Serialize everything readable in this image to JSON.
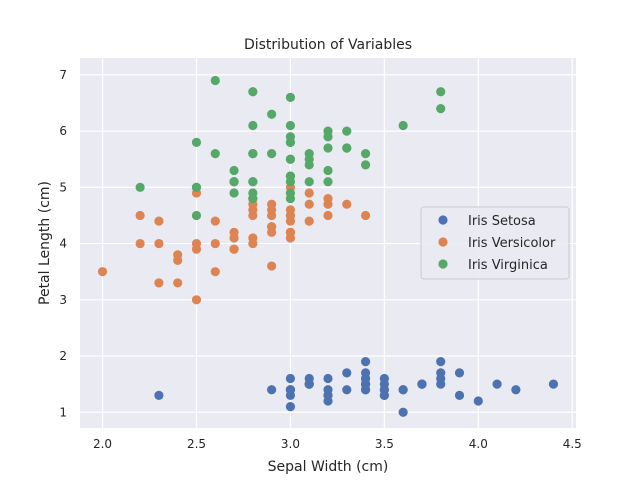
{
  "chart_data": {
    "type": "scatter",
    "title": "Distribution of Variables",
    "xlabel": "Sepal Width (cm)",
    "ylabel": "Petal Length (cm)",
    "xlim": [
      1.88,
      4.52
    ],
    "ylim": [
      0.72,
      7.3
    ],
    "xticks": [
      2.0,
      2.5,
      3.0,
      3.5,
      4.0,
      4.5
    ],
    "xtick_labels": [
      "2.0",
      "2.5",
      "3.0",
      "3.5",
      "4.0",
      "4.5"
    ],
    "yticks": [
      1,
      2,
      3,
      4,
      5,
      6,
      7
    ],
    "ytick_labels": [
      "1",
      "2",
      "3",
      "4",
      "5",
      "6",
      "7"
    ],
    "grid": true,
    "legend_position": "center-right",
    "background": "#eaeaf2",
    "series": [
      {
        "name": "Iris Setosa",
        "color": "#4c72b0",
        "points": [
          [
            3.5,
            1.4
          ],
          [
            3.0,
            1.4
          ],
          [
            3.2,
            1.3
          ],
          [
            3.1,
            1.5
          ],
          [
            3.6,
            1.4
          ],
          [
            3.9,
            1.7
          ],
          [
            3.4,
            1.4
          ],
          [
            3.4,
            1.5
          ],
          [
            2.9,
            1.4
          ],
          [
            3.1,
            1.5
          ],
          [
            3.7,
            1.5
          ],
          [
            3.4,
            1.6
          ],
          [
            3.0,
            1.4
          ],
          [
            3.0,
            1.1
          ],
          [
            4.0,
            1.2
          ],
          [
            4.4,
            1.5
          ],
          [
            3.9,
            1.3
          ],
          [
            3.5,
            1.4
          ],
          [
            3.8,
            1.7
          ],
          [
            3.8,
            1.5
          ],
          [
            3.4,
            1.7
          ],
          [
            3.7,
            1.5
          ],
          [
            3.6,
            1.0
          ],
          [
            3.3,
            1.7
          ],
          [
            3.4,
            1.9
          ],
          [
            3.0,
            1.6
          ],
          [
            3.4,
            1.6
          ],
          [
            3.5,
            1.5
          ],
          [
            3.4,
            1.4
          ],
          [
            3.2,
            1.6
          ],
          [
            3.1,
            1.6
          ],
          [
            3.4,
            1.5
          ],
          [
            4.1,
            1.5
          ],
          [
            4.2,
            1.4
          ],
          [
            3.1,
            1.5
          ],
          [
            3.2,
            1.2
          ],
          [
            3.5,
            1.3
          ],
          [
            3.6,
            1.4
          ],
          [
            3.0,
            1.3
          ],
          [
            3.4,
            1.5
          ],
          [
            3.5,
            1.3
          ],
          [
            2.3,
            1.3
          ],
          [
            3.2,
            1.3
          ],
          [
            3.5,
            1.6
          ],
          [
            3.8,
            1.9
          ],
          [
            3.0,
            1.4
          ],
          [
            3.8,
            1.6
          ],
          [
            3.2,
            1.4
          ],
          [
            3.7,
            1.5
          ],
          [
            3.3,
            1.4
          ]
        ]
      },
      {
        "name": "Iris Versicolor",
        "color": "#dd8452",
        "points": [
          [
            3.2,
            4.7
          ],
          [
            3.2,
            4.5
          ],
          [
            3.1,
            4.9
          ],
          [
            2.3,
            4.0
          ],
          [
            2.8,
            4.6
          ],
          [
            2.8,
            4.5
          ],
          [
            3.3,
            4.7
          ],
          [
            2.4,
            3.3
          ],
          [
            2.9,
            4.6
          ],
          [
            2.7,
            3.9
          ],
          [
            2.0,
            3.5
          ],
          [
            3.0,
            4.2
          ],
          [
            2.2,
            4.0
          ],
          [
            2.9,
            4.7
          ],
          [
            2.9,
            3.6
          ],
          [
            3.1,
            4.4
          ],
          [
            3.0,
            4.5
          ],
          [
            2.7,
            4.1
          ],
          [
            2.2,
            4.5
          ],
          [
            2.5,
            3.9
          ],
          [
            3.2,
            4.8
          ],
          [
            2.8,
            4.0
          ],
          [
            2.5,
            4.9
          ],
          [
            2.8,
            4.7
          ],
          [
            2.9,
            4.3
          ],
          [
            3.0,
            4.4
          ],
          [
            2.8,
            4.8
          ],
          [
            3.0,
            5.0
          ],
          [
            2.9,
            4.5
          ],
          [
            2.6,
            3.5
          ],
          [
            2.4,
            3.8
          ],
          [
            2.4,
            3.7
          ],
          [
            2.7,
            3.9
          ],
          [
            2.7,
            5.1
          ],
          [
            3.0,
            4.5
          ],
          [
            3.4,
            4.5
          ],
          [
            3.1,
            4.7
          ],
          [
            2.3,
            4.4
          ],
          [
            3.0,
            4.1
          ],
          [
            2.5,
            4.0
          ],
          [
            2.6,
            4.4
          ],
          [
            3.0,
            4.6
          ],
          [
            2.6,
            4.0
          ],
          [
            2.3,
            3.3
          ],
          [
            2.7,
            4.2
          ],
          [
            3.0,
            4.2
          ],
          [
            2.9,
            4.2
          ],
          [
            2.9,
            4.3
          ],
          [
            2.5,
            3.0
          ],
          [
            2.8,
            4.1
          ]
        ]
      },
      {
        "name": "Iris Virginica",
        "color": "#55a868",
        "points": [
          [
            3.3,
            6.0
          ],
          [
            2.7,
            5.1
          ],
          [
            3.0,
            5.9
          ],
          [
            2.9,
            5.6
          ],
          [
            3.0,
            5.8
          ],
          [
            3.0,
            6.6
          ],
          [
            2.5,
            4.5
          ],
          [
            2.9,
            6.3
          ],
          [
            2.5,
            5.8
          ],
          [
            3.6,
            6.1
          ],
          [
            3.2,
            5.1
          ],
          [
            2.7,
            5.3
          ],
          [
            3.0,
            5.5
          ],
          [
            2.5,
            5.0
          ],
          [
            2.8,
            5.1
          ],
          [
            3.2,
            5.3
          ],
          [
            3.0,
            5.5
          ],
          [
            3.8,
            6.7
          ],
          [
            2.6,
            6.9
          ],
          [
            2.2,
            5.0
          ],
          [
            3.2,
            5.7
          ],
          [
            2.8,
            4.9
          ],
          [
            2.8,
            6.7
          ],
          [
            2.7,
            4.9
          ],
          [
            3.3,
            5.7
          ],
          [
            3.2,
            6.0
          ],
          [
            2.8,
            4.8
          ],
          [
            3.0,
            4.9
          ],
          [
            2.8,
            5.6
          ],
          [
            3.0,
            5.8
          ],
          [
            2.8,
            6.1
          ],
          [
            3.8,
            6.4
          ],
          [
            2.8,
            5.6
          ],
          [
            2.8,
            5.1
          ],
          [
            2.6,
            5.6
          ],
          [
            3.0,
            6.1
          ],
          [
            3.4,
            5.6
          ],
          [
            3.1,
            5.5
          ],
          [
            3.0,
            4.8
          ],
          [
            3.1,
            5.4
          ],
          [
            3.1,
            5.6
          ],
          [
            3.1,
            5.1
          ],
          [
            2.7,
            5.1
          ],
          [
            3.2,
            5.9
          ],
          [
            3.3,
            5.7
          ],
          [
            3.0,
            5.2
          ],
          [
            2.5,
            5.0
          ],
          [
            3.0,
            5.2
          ],
          [
            3.4,
            5.4
          ],
          [
            3.0,
            5.1
          ]
        ]
      }
    ]
  }
}
